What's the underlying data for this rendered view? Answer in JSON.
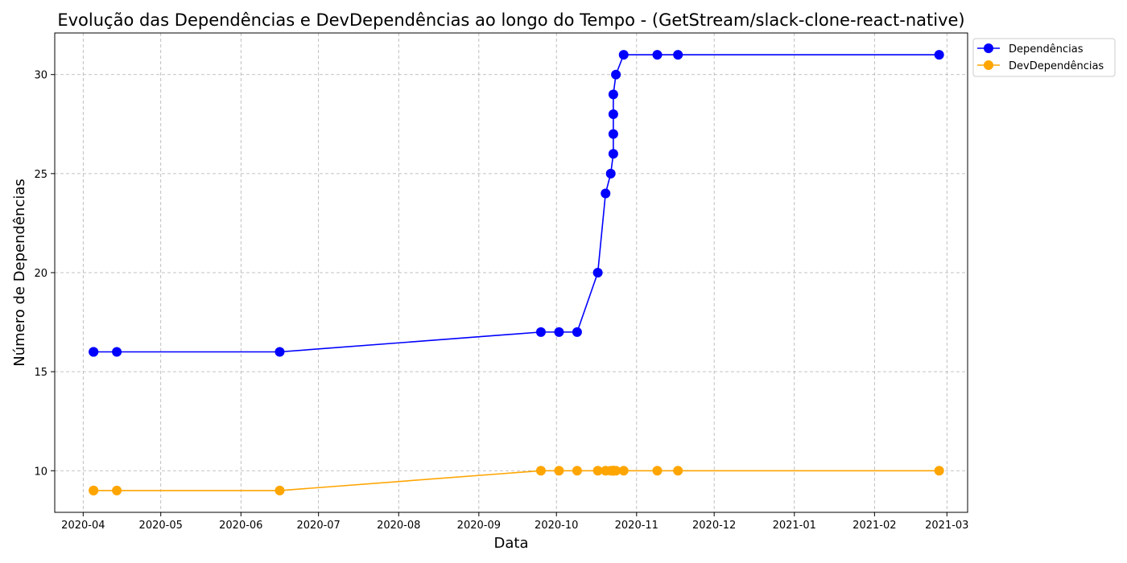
{
  "chart_data": {
    "type": "line",
    "title": "Evolução das Dependências e DevDependências ao longo do Tempo - (GetStream/slack-clone-react-native)",
    "xlabel": "Data",
    "ylabel": "Número de Dependências",
    "xlim": [
      "2020-03-21",
      "2021-03-09"
    ],
    "ylim": [
      7.9,
      32.1
    ],
    "x_ticks": [
      "2020-04",
      "2020-05",
      "2020-06",
      "2020-07",
      "2020-08",
      "2020-09",
      "2020-10",
      "2020-11",
      "2020-12",
      "2021-01",
      "2021-02",
      "2021-03"
    ],
    "y_ticks": [
      10,
      15,
      20,
      25,
      30
    ],
    "grid": true,
    "legend_position": "upper-right-outside",
    "x": [
      "2020-04-05",
      "2020-04-05",
      "2020-04-14",
      "2020-06-16",
      "2020-09-25",
      "2020-10-02",
      "2020-10-09",
      "2020-10-17",
      "2020-10-20",
      "2020-10-22",
      "2020-10-23",
      "2020-10-23",
      "2020-10-23",
      "2020-10-23",
      "2020-10-24",
      "2020-10-27",
      "2020-11-09",
      "2020-11-17",
      "2021-02-26"
    ],
    "series": [
      {
        "name": "Dependências",
        "color": "#0000ff",
        "values": [
          16,
          16,
          16,
          16,
          17,
          17,
          17,
          20,
          24,
          25,
          26,
          27,
          28,
          29,
          30,
          31,
          31,
          31,
          31
        ]
      },
      {
        "name": "DevDependências",
        "color": "#ffa500",
        "values": [
          9,
          9,
          9,
          9,
          10,
          10,
          10,
          10,
          10,
          10,
          10,
          10,
          10,
          10,
          10,
          10,
          10,
          10,
          10
        ]
      }
    ]
  }
}
